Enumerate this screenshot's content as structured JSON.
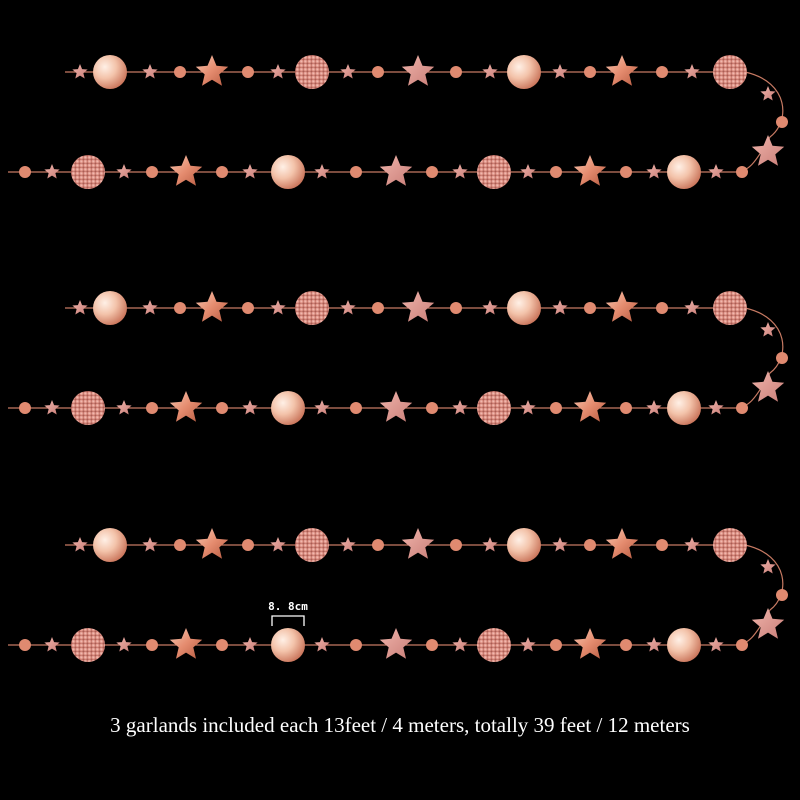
{
  "caption": "3 garlands included each 13feet / 4 meters, totally 39 feet / 12 meters",
  "dimension_label": "8. 8cm",
  "colors": {
    "background": "#000000",
    "string": "#c77a63",
    "foil_light": "#f7d2bd",
    "foil_mid": "#e89d82",
    "foil_dark": "#b0573f",
    "glitter": "#d88a80",
    "glitter_light": "#efb0a6",
    "caption_text": "#ffffff",
    "dimension_text": "#ffffff"
  },
  "product": {
    "garland_count": 3,
    "pieces": [
      "foil-circle",
      "glitter-circle",
      "foil-star",
      "glitter-star",
      "small-dot"
    ]
  }
}
